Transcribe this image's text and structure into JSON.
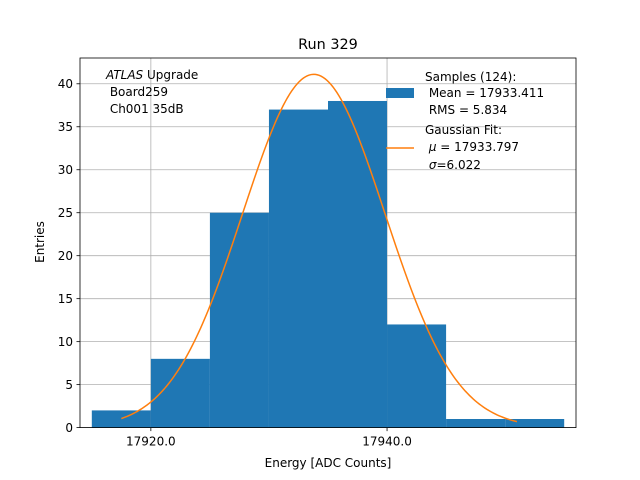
{
  "chart_data": {
    "type": "bar",
    "title": "Run 329",
    "xlabel": "Energy [ADC Counts]",
    "ylabel": "Entries",
    "xlim": [
      17914.0,
      17956.0
    ],
    "ylim": [
      0,
      43.0
    ],
    "grid": true,
    "xticks": [
      17920.0,
      17940.0
    ],
    "xtick_labels": [
      "17920.0",
      "17940.0"
    ],
    "yticks": [
      0,
      5,
      10,
      15,
      20,
      25,
      30,
      35,
      40
    ],
    "ytick_labels": [
      "0",
      "5",
      "10",
      "15",
      "20",
      "25",
      "30",
      "35",
      "40"
    ],
    "bins": [
      {
        "x0": 17915.0,
        "x1": 17920.0,
        "count": 2
      },
      {
        "x0": 17920.0,
        "x1": 17925.0,
        "count": 8
      },
      {
        "x0": 17925.0,
        "x1": 17930.0,
        "count": 25
      },
      {
        "x0": 17930.0,
        "x1": 17935.0,
        "count": 37
      },
      {
        "x0": 17935.0,
        "x1": 17940.0,
        "count": 38
      },
      {
        "x0": 17940.0,
        "x1": 17945.0,
        "count": 12
      },
      {
        "x0": 17945.0,
        "x1": 17950.0,
        "count": 1
      },
      {
        "x0": 17950.0,
        "x1": 17955.0,
        "count": 1
      }
    ],
    "fit": {
      "type": "gaussian",
      "mu": 17933.797,
      "sigma": 6.022,
      "amplitude": 41.1,
      "x_range": [
        17917.5,
        17951.0
      ]
    },
    "colors": {
      "hist": "#1f77b4",
      "fit": "#ff7f0e",
      "grid": "#b0b0b0"
    },
    "annotation": {
      "line1_italic": "ATLAS",
      "line1_rest": " Upgrade",
      "line2": " Board259",
      "line3": " Ch001 35dB"
    },
    "legend": {
      "placement": "upper-right",
      "hist_line1": "Samples (124):",
      "hist_line2": " Mean = 17933.411",
      "hist_line3": " RMS = 5.834",
      "fit_line1": "Gaussian Fit:",
      "fit_mu_symbol": "μ",
      "fit_mu_text": " = 17933.797",
      "fit_sigma_symbol": "σ",
      "fit_sigma_text": "=6.022"
    }
  }
}
